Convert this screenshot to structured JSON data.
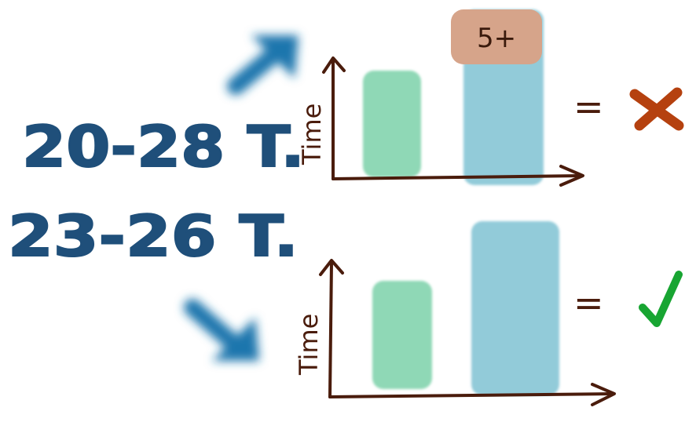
{
  "top_row": {
    "range_label": "20-28 T.",
    "arrow": "arrow-up-right-icon",
    "chart": {
      "y_label": "Time",
      "bar_values": [
        0.75,
        1.12
      ],
      "cap_label": "5+"
    },
    "equals": "=",
    "verdict_icon": "cross-icon"
  },
  "bottom_row": {
    "range_label": "23-26 T.",
    "arrow": "arrow-down-right-icon",
    "chart": {
      "y_label": "Time",
      "bar_values": [
        0.78,
        1.2
      ]
    },
    "equals": "=",
    "verdict_icon": "check-icon"
  },
  "colors": {
    "text_blue": "#1f4f7a",
    "arrow_blue": "#1b76ad",
    "axis_brown": "#4a1c0c",
    "green_bar": "#8fd8b6",
    "blue_bar": "#92cbd9",
    "cap_fill": "#d6a48a",
    "cross": "#b5410f",
    "check": "#18a532"
  }
}
